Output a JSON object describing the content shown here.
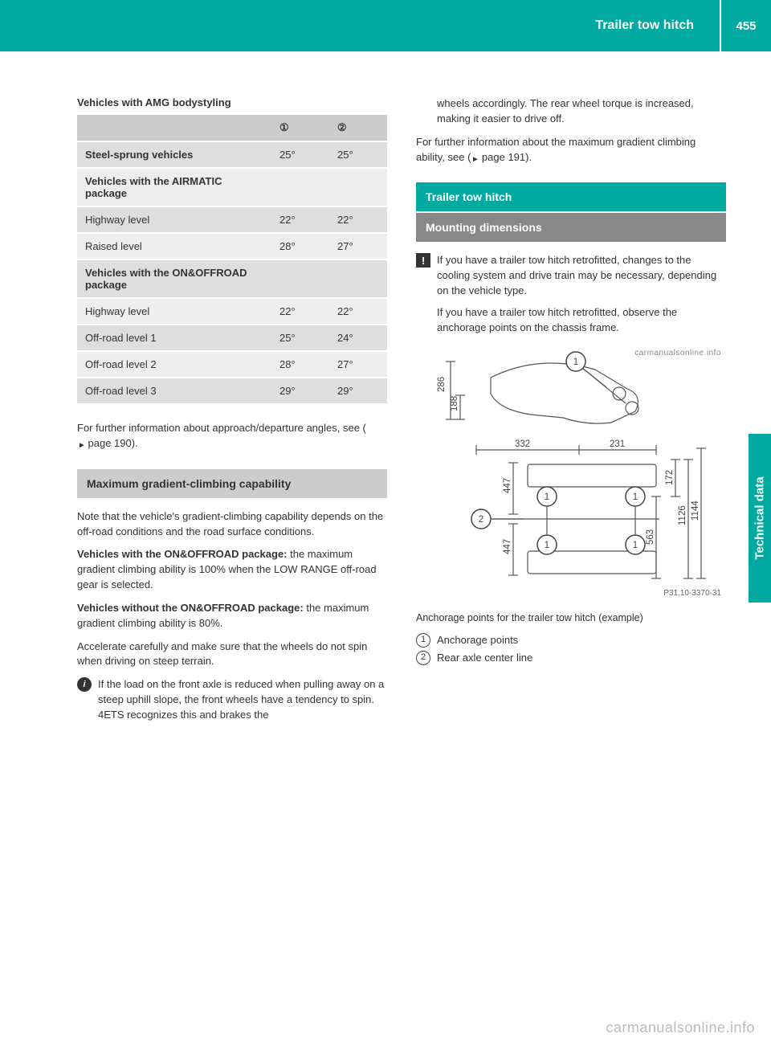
{
  "header": {
    "title": "Trailer tow hitch",
    "page": "455"
  },
  "sidetab": "Technical data",
  "watermark": "carmanualsonline.info",
  "col1": {
    "tableTitle": "Vehicles with AMG bodystyling",
    "tableColors": {
      "header": "#cccccc",
      "odd": "#dedede",
      "even": "#eeeeee"
    },
    "colSymbols": {
      "c1": "①",
      "c2": "②"
    },
    "rows": [
      {
        "label": "Steel-sprung vehicles",
        "v1": "25°",
        "v2": "25°",
        "bold": true,
        "group": true
      },
      {
        "label": "Vehicles with the AIRMATIC package",
        "v1": "",
        "v2": "",
        "bold": true,
        "group": true
      },
      {
        "label": "Highway level",
        "v1": "22°",
        "v2": "22°"
      },
      {
        "label": "Raised level",
        "v1": "28°",
        "v2": "27°"
      },
      {
        "label": "Vehicles with the ON&OFFROAD package",
        "v1": "",
        "v2": "",
        "bold": true,
        "group": true
      },
      {
        "label": "Highway level",
        "v1": "22°",
        "v2": "22°"
      },
      {
        "label": "Off-road level 1",
        "v1": "25°",
        "v2": "24°"
      },
      {
        "label": "Off-road level 2",
        "v1": "28°",
        "v2": "27°"
      },
      {
        "label": "Off-road level 3",
        "v1": "29°",
        "v2": "29°"
      }
    ],
    "afterTable": "For further information about approach/departure angles, see (",
    "afterTableRef": " page 190).",
    "sectionA": "Maximum gradient-climbing capability",
    "pA1": "Note that the vehicle's gradient-climbing capability depends on the off-road conditions and the road surface conditions.",
    "pA2bold": "Vehicles with the ON&OFFROAD package:",
    "pA2": " the maximum gradient climbing ability is 100% when the LOW RANGE off-road gear is selected.",
    "pA3bold": "Vehicles without the ON&OFFROAD package:",
    "pA3": " the maximum gradient climbing ability is 80%.",
    "pA4": "Accelerate carefully and make sure that the wheels do not spin when driving on steep terrain.",
    "infoA": "If the load on the front axle is reduced when pulling away on a steep uphill slope, the front wheels have a tendency to spin. 4ETS recognizes this and brakes the"
  },
  "col2": {
    "cont": "wheels accordingly. The rear wheel torque is increased, making it easier to drive off.",
    "pB1": "For further information about the maximum gradient climbing ability, see (",
    "pB1ref": " page 191).",
    "sectionTeal": "Trailer tow hitch",
    "sectionMount": "Mounting dimensions",
    "warn1": "If you have a trailer tow hitch retrofitted, changes to the cooling system and drive train may be necessary, depending on the vehicle type.",
    "warn2": "If you have a trailer tow hitch retrofitted, observe the anchorage points on the chassis frame.",
    "diagram": {
      "dims": {
        "d332": "332",
        "d231": "231",
        "d286": "286",
        "d188": "188",
        "d1126": "1126",
        "d172": "172",
        "d1144": "1144",
        "d447a": "447",
        "d447b": "447",
        "d563": "563"
      },
      "code": "P31.10-3370-31"
    },
    "caption": "Anchorage points for the trailer tow hitch (example)",
    "legend1": "Anchorage points",
    "legend2": "Rear axle center line"
  }
}
